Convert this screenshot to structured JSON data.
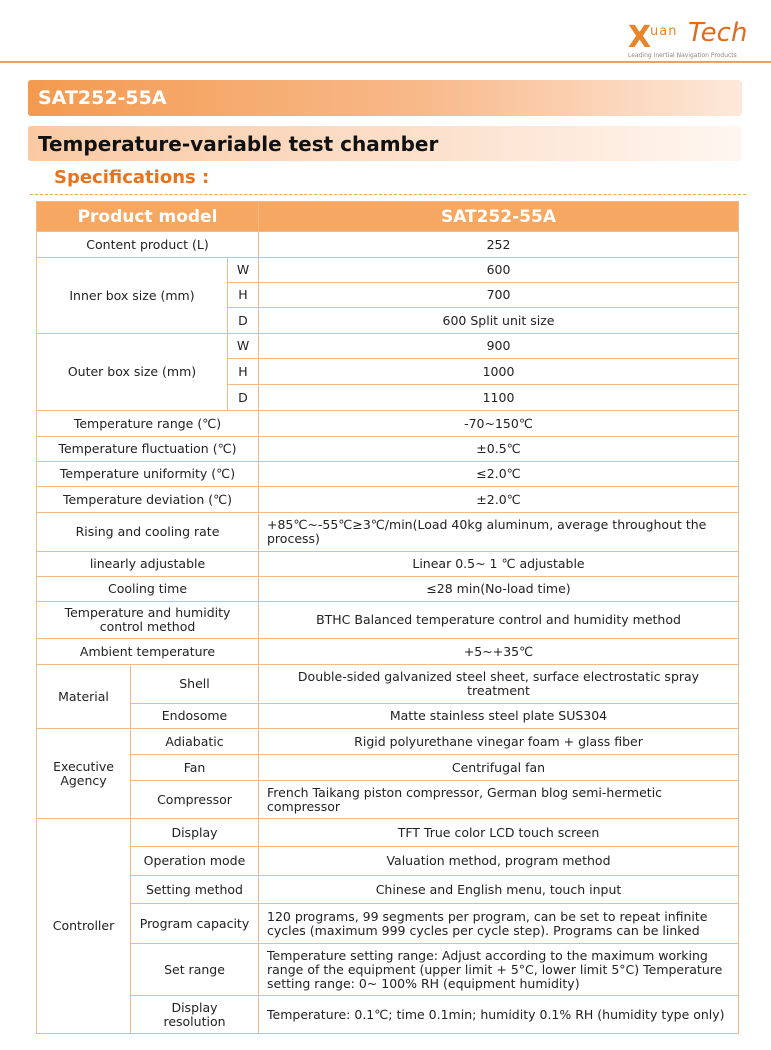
{
  "header": {
    "logo_letter": "X",
    "logo_word": "uan",
    "logo_brand": "Tech",
    "logo_tagline": "Leading Inertial Navigation Products"
  },
  "model_banner": "SAT252-55A",
  "product_banner": "Temperature-variable test chamber",
  "section_heading": "Specifications :",
  "table": {
    "header": [
      "Product model",
      "SAT252-55A"
    ],
    "rows": [
      [
        "Content product (L)",
        "252"
      ],
      [
        "Inner box size (mm)",
        "W",
        "600"
      ],
      [
        "H",
        "700"
      ],
      [
        "D",
        "600  Split unit size"
      ],
      [
        "Outer box size (mm)",
        "W",
        "900"
      ],
      [
        "H",
        "1000"
      ],
      [
        "D",
        "1100"
      ],
      [
        "Temperature range (℃)",
        "-70~150℃"
      ],
      [
        "Temperature fluctuation (℃)",
        "±0.5℃"
      ],
      [
        "Temperature uniformity (℃)",
        "≤2.0℃"
      ],
      [
        "Temperature deviation (℃)",
        "±2.0℃"
      ],
      [
        "Rising and cooling rate",
        "+85℃~-55℃≥3℃/min(Load 40kg aluminum, average throughout the process)"
      ],
      [
        "linearly adjustable",
        "Linear 0.5~ 1 ℃ adjustable"
      ],
      [
        "Cooling time",
        "≤28 min(No-load time)"
      ],
      [
        "Temperature and humidity control method",
        "BTHC Balanced temperature control and humidity method"
      ],
      [
        "Ambient temperature",
        "+5~+35℃"
      ],
      [
        "Material",
        "Shell",
        "Double-sided galvanized steel sheet, surface electrostatic spray treatment"
      ],
      [
        "Endosome",
        "Matte stainless steel plate  SUS304"
      ],
      [
        "Executive Agency",
        "Adiabatic",
        "Rigid polyurethane vinegar foam + glass fiber"
      ],
      [
        "Fan",
        "Centrifugal fan"
      ],
      [
        "Compressor",
        "French Taikang piston compressor, German blog semi-hermetic compressor"
      ],
      [
        "Controller",
        "Display",
        "TFT True color LCD touch screen"
      ],
      [
        "Operation mode",
        "Valuation method, program method"
      ],
      [
        "Setting method",
        "Chinese and English menu, touch input"
      ],
      [
        "Program capacity",
        "120 programs, 99 segments per program, can be set to repeat infinite cycles (maximum 999 cycles per cycle step). Programs can be linked"
      ],
      [
        "Set range",
        "Temperature setting range: Adjust according to the maximum working range of the equipment (upper limit + 5°C, lower limit 5°C) Temperature setting range: 0~ 100% RH (equipment humidity)"
      ],
      [
        "Display resolution",
        "Temperature: 0.1℃; time 0.1min; humidity 0.1% RH (humidity type only)"
      ]
    ]
  }
}
